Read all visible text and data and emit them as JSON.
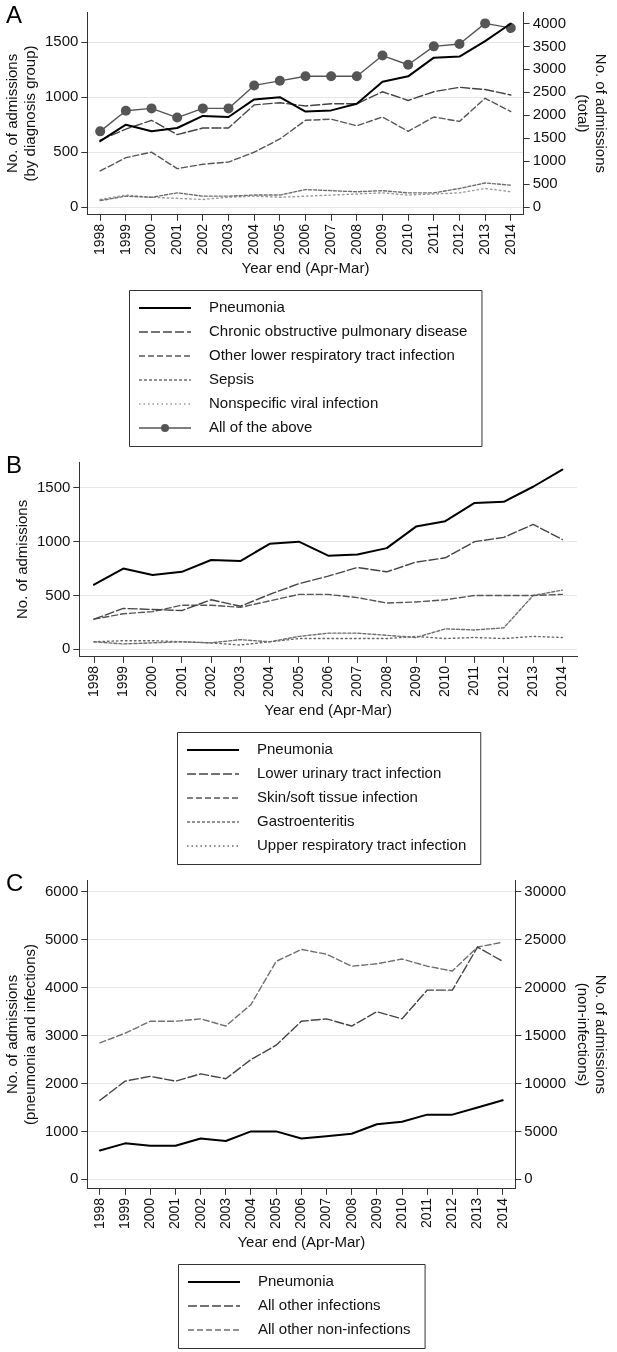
{
  "chart_data": [
    {
      "type": "line",
      "title": "A",
      "xlabel": "Year end (Apr-Mar)",
      "ylabel": "No. of admissions\n(by diagnosis group)",
      "y2label": "No. of admissions\n(total)",
      "categories": [
        "1998",
        "1999",
        "2000",
        "2001",
        "2002",
        "2003",
        "2004",
        "2005",
        "2006",
        "2007",
        "2008",
        "2009",
        "2010",
        "2011",
        "2012",
        "2013",
        "2014"
      ],
      "ylim": [
        -70,
        1775
      ],
      "yticks": [
        0,
        500,
        1000,
        1500
      ],
      "y2lim": [
        -167,
        4248
      ],
      "y2ticks": [
        0,
        500,
        1000,
        1500,
        2000,
        2500,
        3000,
        3500,
        4000
      ],
      "grid": "y",
      "legend": "bottom",
      "series": [
        {
          "name": "Pneumonia",
          "color": "#000000",
          "line_style": "solid",
          "values": [
            600,
            750,
            690,
            720,
            830,
            820,
            980,
            1000,
            870,
            880,
            940,
            1140,
            1190,
            1360,
            1370,
            1510,
            1670
          ]
        },
        {
          "name": "Chronic obstructive pulmonary disease",
          "color": "#444444",
          "line_style": "dashed",
          "values": [
            610,
            710,
            790,
            660,
            720,
            720,
            930,
            950,
            920,
            940,
            940,
            1050,
            970,
            1050,
            1090,
            1070,
            1020
          ]
        },
        {
          "name": "Other lower respiratory tract infection",
          "color": "#555555",
          "line_style": "dashed",
          "values": [
            330,
            450,
            500,
            350,
            390,
            410,
            500,
            620,
            790,
            800,
            740,
            820,
            690,
            820,
            780,
            990,
            870
          ]
        },
        {
          "name": "Sepsis",
          "color": "#6e6e6e",
          "line_style": "dashed",
          "values": [
            60,
            100,
            90,
            130,
            100,
            100,
            110,
            110,
            160,
            150,
            140,
            150,
            130,
            130,
            170,
            220,
            200
          ]
        },
        {
          "name": "Nonspecific viral infection",
          "color": "#999999",
          "line_style": "dotted",
          "values": [
            70,
            110,
            90,
            80,
            70,
            90,
            100,
            90,
            100,
            110,
            120,
            130,
            110,
            120,
            130,
            170,
            140
          ]
        },
        {
          "name": "All of the above",
          "color": "#555555",
          "line_style": "solid",
          "marker": "circle",
          "axis": "y2",
          "values": [
            1650,
            2100,
            2150,
            1950,
            2150,
            2150,
            2650,
            2750,
            2850,
            2850,
            2850,
            3300,
            3100,
            3500,
            3550,
            4000,
            3900
          ]
        }
      ]
    },
    {
      "type": "line",
      "title": "B",
      "xlabel": "Year end (Apr-Mar)",
      "ylabel": "No. of admissions",
      "categories": [
        "1998",
        "1999",
        "2000",
        "2001",
        "2002",
        "2003",
        "2004",
        "2005",
        "2006",
        "2007",
        "2008",
        "2009",
        "2010",
        "2011",
        "2012",
        "2013",
        "2014"
      ],
      "ylim": [
        -70,
        1740
      ],
      "yticks": [
        0,
        500,
        1000,
        1500
      ],
      "grid": "y",
      "legend": "bottom",
      "series": [
        {
          "name": "Pneumonia",
          "color": "#000000",
          "line_style": "solid",
          "values": [
            600,
            750,
            690,
            720,
            830,
            820,
            980,
            1000,
            870,
            880,
            940,
            1140,
            1190,
            1360,
            1370,
            1510,
            1670
          ]
        },
        {
          "name": "Lower urinary tract infection",
          "color": "#444444",
          "line_style": "dashed",
          "values": [
            280,
            380,
            370,
            360,
            460,
            400,
            510,
            610,
            680,
            760,
            720,
            810,
            850,
            1000,
            1040,
            1160,
            1020
          ]
        },
        {
          "name": "Skin/soft tissue infection",
          "color": "#555555",
          "line_style": "dashed",
          "values": [
            280,
            330,
            350,
            410,
            410,
            390,
            450,
            510,
            510,
            480,
            430,
            440,
            460,
            500,
            500,
            500,
            510
          ]
        },
        {
          "name": "Gastroenteritis",
          "color": "#6e6e6e",
          "line_style": "dashed",
          "values": [
            70,
            50,
            60,
            70,
            60,
            90,
            70,
            120,
            150,
            150,
            130,
            110,
            190,
            180,
            200,
            500,
            550
          ]
        },
        {
          "name": "Upper respiratory tract infection",
          "color": "#666666",
          "line_style": "dotted",
          "values": [
            70,
            80,
            80,
            70,
            60,
            40,
            70,
            100,
            100,
            100,
            100,
            120,
            100,
            110,
            100,
            120,
            110
          ]
        }
      ]
    },
    {
      "type": "line",
      "title": "C",
      "xlabel": "Year end (Apr-Mar)",
      "ylabel": "No. of admissions\n(pneumonia and infections)",
      "y2label": "No. of admissions\n(non-infections)",
      "categories": [
        "1998",
        "1999",
        "2000",
        "2001",
        "2002",
        "2003",
        "2004",
        "2005",
        "2006",
        "2007",
        "2008",
        "2009",
        "2010",
        "2011",
        "2012",
        "2013",
        "2014"
      ],
      "ylim": [
        -200,
        6250
      ],
      "yticks": [
        0,
        1000,
        2000,
        3000,
        4000,
        5000,
        6000
      ],
      "y2lim": [
        -1000,
        31250
      ],
      "y2ticks": [
        0,
        5000,
        10000,
        15000,
        20000,
        25000,
        30000
      ],
      "grid": "y",
      "legend": "bottom",
      "series": [
        {
          "name": "Pneumonia",
          "color": "#000000",
          "line_style": "solid",
          "values": [
            600,
            750,
            700,
            700,
            850,
            800,
            1000,
            1000,
            850,
            900,
            950,
            1150,
            1200,
            1350,
            1350,
            1500,
            1650
          ]
        },
        {
          "name": "All other infections",
          "color": "#444444",
          "line_style": "dashed",
          "values": [
            1650,
            2050,
            2150,
            2050,
            2200,
            2100,
            2500,
            2800,
            3300,
            3350,
            3200,
            3500,
            3350,
            3950,
            3950,
            4850,
            4550
          ]
        },
        {
          "name": "All other non-infections",
          "color": "#6e6e6e",
          "line_style": "dashed",
          "axis": "y2",
          "values": [
            14250,
            15250,
            16500,
            16500,
            16750,
            16000,
            18250,
            22750,
            24000,
            23500,
            22250,
            22500,
            23000,
            22250,
            21750,
            24250,
            24750
          ]
        }
      ]
    }
  ]
}
